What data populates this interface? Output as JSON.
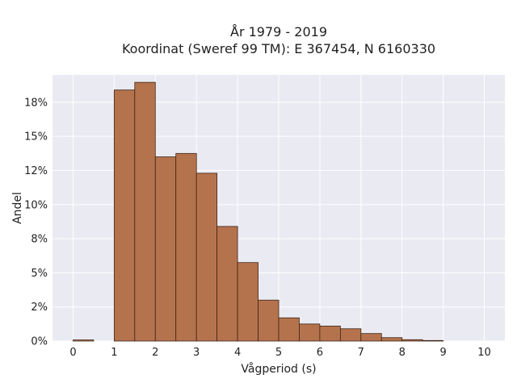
{
  "chart_data": {
    "type": "bar",
    "title_lines": [
      "År 1979 - 2019",
      "Koordinat (Sweref 99 TM): E 367454, N 6160330"
    ],
    "xlabel": "Vågperiod (s)",
    "ylabel": "Andel",
    "xlim": [
      -0.5,
      10.5
    ],
    "ylim": [
      0,
      19.5
    ],
    "xticks": [
      0,
      1,
      2,
      3,
      4,
      5,
      6,
      7,
      8,
      9,
      10
    ],
    "xtick_labels": [
      "0",
      "1",
      "2",
      "3",
      "4",
      "5",
      "6",
      "7",
      "8",
      "9",
      "10"
    ],
    "yticks": [
      0,
      2.5,
      5,
      7.5,
      10,
      12.5,
      15,
      17.5
    ],
    "ytick_labels": [
      "0%",
      "2%",
      "5%",
      "8%",
      "10%",
      "12%",
      "15%",
      "18%"
    ],
    "bin_width": 0.5,
    "bins": [
      {
        "start": 0.0,
        "value": 0.08
      },
      {
        "start": 0.5,
        "value": 0.0
      },
      {
        "start": 1.0,
        "value": 18.4
      },
      {
        "start": 1.5,
        "value": 18.96
      },
      {
        "start": 2.0,
        "value": 13.5
      },
      {
        "start": 2.5,
        "value": 13.75
      },
      {
        "start": 3.0,
        "value": 12.3
      },
      {
        "start": 3.5,
        "value": 8.4
      },
      {
        "start": 4.0,
        "value": 5.75
      },
      {
        "start": 4.5,
        "value": 3.0
      },
      {
        "start": 5.0,
        "value": 1.7
      },
      {
        "start": 5.5,
        "value": 1.25
      },
      {
        "start": 6.0,
        "value": 1.1
      },
      {
        "start": 6.5,
        "value": 0.9
      },
      {
        "start": 7.0,
        "value": 0.55
      },
      {
        "start": 7.5,
        "value": 0.25
      },
      {
        "start": 8.0,
        "value": 0.1
      },
      {
        "start": 8.5,
        "value": 0.04
      },
      {
        "start": 9.0,
        "value": 0.0
      },
      {
        "start": 9.5,
        "value": 0.0
      }
    ],
    "grid": true,
    "colors": {
      "bar_fill": "#b5734d",
      "bar_stroke": "#3d2415",
      "plot_bg": "#eaeaf2",
      "grid": "#ffffff"
    }
  }
}
